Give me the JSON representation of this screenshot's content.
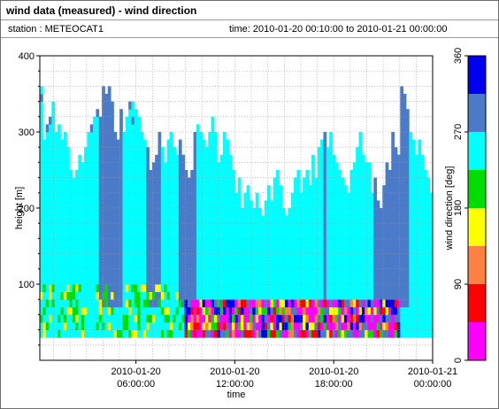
{
  "window": {
    "title": "wind data (measured) - wind direction",
    "station_text": "station : METEOCAT1",
    "time_text": "time: 2010-01-20 00:10:00 to 2010-01-21 00:00:00"
  },
  "chart_data": {
    "type": "heatmap",
    "title": "wind data (measured) - wind direction",
    "xlabel": "time",
    "ylabel": "height [m]",
    "xlim": [
      "2010-01-20 00:10:00",
      "2010-01-21 00:00:00"
    ],
    "ylim": [
      0,
      400
    ],
    "x_ticks": [
      {
        "value": "2010-01-20 06:00:00",
        "line1": "2010-01-20",
        "line2": "06:00:00"
      },
      {
        "value": "2010-01-20 12:00:00",
        "line1": "2010-01-20",
        "line2": "12:00:00"
      },
      {
        "value": "2010-01-20 18:00:00",
        "line1": "2010-01-20",
        "line2": "18:00:00"
      },
      {
        "value": "2010-01-21 00:00:00",
        "line1": "2010-01-21",
        "line2": "00:00:00"
      }
    ],
    "y_ticks": [
      100,
      200,
      300,
      400
    ],
    "grid": true,
    "colorbar": {
      "label": "wind direction [deg]",
      "min": 0,
      "max": 360,
      "ticks": [
        0,
        90,
        180,
        270,
        360
      ],
      "bins": [
        {
          "from": 0,
          "to": 45,
          "color": "#ff00ff"
        },
        {
          "from": 45,
          "to": 90,
          "color": "#ff0000"
        },
        {
          "from": 90,
          "to": 135,
          "color": "#ff8040"
        },
        {
          "from": 135,
          "to": 180,
          "color": "#ffff00"
        },
        {
          "from": 180,
          "to": 225,
          "color": "#00dd00"
        },
        {
          "from": 225,
          "to": 270,
          "color": "#00ffff"
        },
        {
          "from": 270,
          "to": 315,
          "color": "#4a7ac8"
        },
        {
          "from": 315,
          "to": 360,
          "color": "#0000ee"
        }
      ]
    },
    "data_extent": {
      "height_min": 30,
      "height_step": 10
    },
    "column_top_heights_m": [
      360,
      290,
      310,
      320,
      340,
      300,
      310,
      290,
      300,
      280,
      250,
      240,
      250,
      270,
      260,
      280,
      300,
      310,
      320,
      330,
      320,
      360,
      350,
      360,
      340,
      300,
      290,
      330,
      300,
      320,
      340,
      340,
      330,
      320,
      300,
      290,
      280,
      250,
      260,
      270,
      300,
      280,
      260,
      290,
      300,
      280,
      270,
      290,
      270,
      250,
      240,
      250,
      300,
      310,
      300,
      290,
      280,
      300,
      320,
      300,
      260,
      270,
      300,
      290,
      270,
      250,
      220,
      240,
      200,
      220,
      230,
      210,
      200,
      220,
      200,
      190,
      210,
      230,
      210,
      240,
      250,
      230,
      200,
      190,
      200,
      220,
      240,
      250,
      220,
      240,
      250,
      230,
      270,
      240,
      280,
      290,
      300,
      280,
      300,
      270,
      260,
      250,
      240,
      230,
      220,
      250,
      260,
      280,
      300,
      270,
      260,
      260,
      220,
      240,
      210,
      200,
      230,
      260,
      250,
      300,
      280,
      270,
      360,
      350,
      330,
      300,
      290,
      270,
      290,
      270,
      250,
      240,
      220
    ],
    "tall_blue_columns_x_hours": [
      [
        3.8,
        5.2
      ],
      [
        6.6,
        7.6
      ],
      [
        8.6,
        9.6
      ],
      [
        20.4,
        21.4
      ],
      [
        21.4,
        22.6
      ],
      [
        17.3,
        17.6
      ]
    ],
    "lower_mixed_band_height_range_m": [
      30,
      70
    ]
  }
}
